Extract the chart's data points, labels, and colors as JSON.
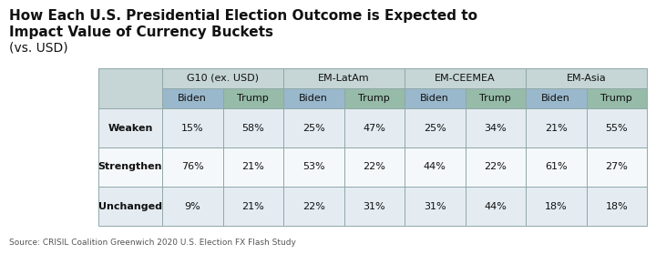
{
  "title_line1": "How Each U.S. Presidential Election Outcome is Expected to",
  "title_line2": "Impact Value of Currency Buckets",
  "title_line3": "(vs. USD)",
  "source": "Source: CRISIL Coalition Greenwich 2020 U.S. Election FX Flash Study",
  "col_groups": [
    "G10 (ex. USD)",
    "EM-LatAm",
    "EM-CEEMEA",
    "EM-Asia"
  ],
  "sub_cols": [
    "Biden",
    "Trump"
  ],
  "row_labels": [
    "Weaken",
    "Strengthen",
    "Unchanged"
  ],
  "data": {
    "Weaken": [
      "15%",
      "58%",
      "25%",
      "47%",
      "25%",
      "34%",
      "21%",
      "55%"
    ],
    "Strengthen": [
      "76%",
      "21%",
      "53%",
      "22%",
      "44%",
      "22%",
      "61%",
      "27%"
    ],
    "Unchanged": [
      "9%",
      "21%",
      "22%",
      "31%",
      "31%",
      "44%",
      "18%",
      "18%"
    ]
  },
  "color_header_group": "#c6d5d5",
  "color_biden": "#9ab8cc",
  "color_trump": "#96bba8",
  "color_row_odd": "#e4ecf2",
  "color_row_even": "#f5f8fa",
  "color_border": "#8fa8a8",
  "color_bg": "#ffffff",
  "color_text": "#111111",
  "color_source": "#555555",
  "fig_w": 7.2,
  "fig_h": 2.79,
  "dpi": 100
}
